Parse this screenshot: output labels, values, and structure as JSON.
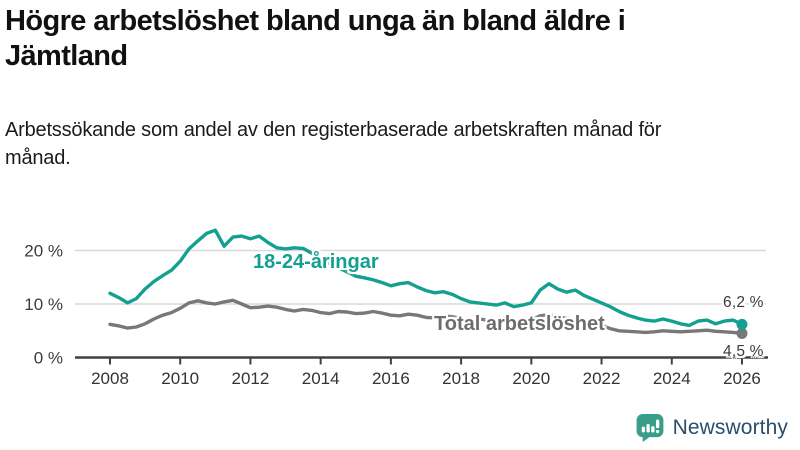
{
  "header": {
    "title": "Högre arbetslöshet bland unga än bland äldre i Jämtland",
    "subtitle": "Arbetssökande som andel av den registerbaserade arbetskraften månad för månad."
  },
  "chart_data": {
    "type": "line",
    "title": "Högre arbetslöshet bland unga än bland äldre i Jämtland",
    "subtitle": "Arbetssökande som andel av den registerbaserade arbetskraften månad för månad.",
    "x_start": 2008,
    "x_step": 0.25,
    "xlim": [
      2007,
      2026.7
    ],
    "ylim": [
      0,
      26
    ],
    "grid": "horizontal",
    "x_ticks": [
      "2008",
      "2010",
      "2012",
      "2014",
      "2016",
      "2018",
      "2020",
      "2022",
      "2024",
      "2026"
    ],
    "y_ticks": [
      {
        "value": 0,
        "label": "0 %"
      },
      {
        "value": 10,
        "label": "10 %"
      },
      {
        "value": 20,
        "label": "20 %"
      }
    ],
    "series": [
      {
        "name": "Total arbetslöshet",
        "color": "#787878",
        "label_color": "#6d6d6d",
        "end_label": "4,5 %",
        "end_value": 4.5,
        "values": [
          6.2,
          5.9,
          5.5,
          5.7,
          6.3,
          7.2,
          7.9,
          8.4,
          9.2,
          10.2,
          10.6,
          10.2,
          10.0,
          10.4,
          10.7,
          10.0,
          9.3,
          9.4,
          9.6,
          9.4,
          9.0,
          8.7,
          9.0,
          8.8,
          8.4,
          8.2,
          8.6,
          8.5,
          8.2,
          8.3,
          8.6,
          8.3,
          7.9,
          7.8,
          8.1,
          7.9,
          7.5,
          7.4,
          7.8,
          7.6,
          7.3,
          7.0,
          7.2,
          7.0,
          6.8,
          6.7,
          6.9,
          6.8,
          7.0,
          7.8,
          8.0,
          7.6,
          7.3,
          7.2,
          6.9,
          6.5,
          6.0,
          5.4,
          5.0,
          4.9,
          4.8,
          4.7,
          4.8,
          5.0,
          4.9,
          4.8,
          4.9,
          5.0,
          5.1,
          4.9,
          4.8,
          4.7,
          4.5
        ]
      },
      {
        "name": "18-24-åringar",
        "color": "#14a091",
        "label_color": "#14a091",
        "end_label": "6,2 %",
        "end_value": 6.2,
        "values": [
          12.0,
          11.2,
          10.2,
          11.0,
          12.8,
          14.2,
          15.3,
          16.3,
          18.0,
          20.3,
          21.8,
          23.2,
          23.8,
          20.8,
          22.5,
          22.7,
          22.2,
          22.7,
          21.5,
          20.5,
          20.3,
          20.5,
          20.4,
          19.5,
          18.5,
          17.6,
          16.8,
          16.0,
          15.2,
          14.9,
          14.5,
          14.0,
          13.4,
          13.8,
          14.0,
          13.2,
          12.5,
          12.1,
          12.3,
          11.8,
          11.0,
          10.4,
          10.2,
          10.0,
          9.8,
          10.2,
          9.5,
          9.8,
          10.2,
          12.6,
          13.8,
          12.8,
          12.2,
          12.6,
          11.6,
          10.9,
          10.2,
          9.5,
          8.6,
          7.9,
          7.4,
          7.0,
          6.8,
          7.2,
          6.8,
          6.3,
          6.0,
          6.8,
          7.0,
          6.3,
          6.8,
          7.0,
          6.2
        ]
      }
    ],
    "colors": {
      "grid": "#d9d9d9",
      "axis": "#404040",
      "tick_label": "#333333",
      "value_label": "#3a3a3a"
    }
  },
  "branding": {
    "logo_text": "Newsworthy",
    "logo_icon": "bar-chart-speech-bubble-icon",
    "logo_icon_color": "#389e8a",
    "logo_text_color": "#2d4d68"
  }
}
